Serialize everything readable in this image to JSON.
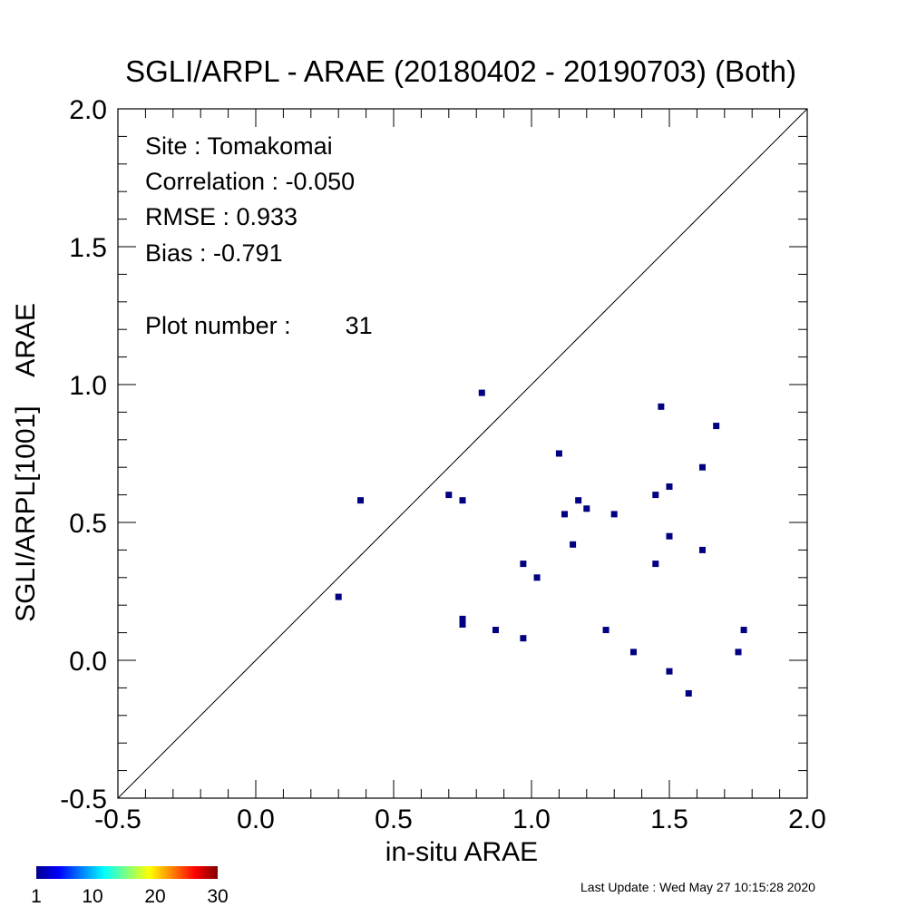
{
  "colors": {
    "point": "#000080",
    "axis": "#000000",
    "background": "#ffffff"
  },
  "chart_data": {
    "type": "scatter",
    "title": "SGLI/ARPL - ARAE (20180402 - 20190703) (Both)",
    "xlabel": "in-situ ARAE",
    "ylabel": "SGLI/ARPL[1001]    ARAE",
    "xlim": [
      -0.5,
      2.0
    ],
    "ylim": [
      -0.5,
      2.0
    ],
    "x_ticks": [
      -0.5,
      0.0,
      0.5,
      1.0,
      1.5,
      2.0
    ],
    "x_tick_labels": [
      "-0.5",
      "0.0",
      "0.5",
      "1.0",
      "1.5",
      "2.0"
    ],
    "y_ticks": [
      -0.5,
      0.0,
      0.5,
      1.0,
      1.5,
      2.0
    ],
    "y_tick_labels": [
      "-0.5",
      "0.0",
      "0.5",
      "1.0",
      "1.5",
      "2.0"
    ],
    "grid": false,
    "one_to_one_line": true,
    "stats": {
      "site": "Site : Tomakomai",
      "correlation": "Correlation :   -0.050",
      "rmse": "RMSE :    0.933",
      "bias": "Bias :   -0.791",
      "plot_number": "Plot number :        31"
    },
    "points": [
      {
        "x": 0.3,
        "y": 0.23
      },
      {
        "x": 0.38,
        "y": 0.58
      },
      {
        "x": 0.7,
        "y": 0.6
      },
      {
        "x": 0.75,
        "y": 0.58
      },
      {
        "x": 0.75,
        "y": 0.15
      },
      {
        "x": 0.75,
        "y": 0.13
      },
      {
        "x": 0.82,
        "y": 0.97
      },
      {
        "x": 0.87,
        "y": 0.11
      },
      {
        "x": 0.97,
        "y": 0.35
      },
      {
        "x": 0.97,
        "y": 0.08
      },
      {
        "x": 1.02,
        "y": 0.3
      },
      {
        "x": 1.1,
        "y": 0.75
      },
      {
        "x": 1.12,
        "y": 0.53
      },
      {
        "x": 1.15,
        "y": 0.42
      },
      {
        "x": 1.17,
        "y": 0.58
      },
      {
        "x": 1.2,
        "y": 0.55
      },
      {
        "x": 1.27,
        "y": 0.11
      },
      {
        "x": 1.3,
        "y": 0.53
      },
      {
        "x": 1.37,
        "y": 0.03
      },
      {
        "x": 1.45,
        "y": 0.6
      },
      {
        "x": 1.45,
        "y": 0.35
      },
      {
        "x": 1.47,
        "y": 0.92
      },
      {
        "x": 1.5,
        "y": 0.63
      },
      {
        "x": 1.5,
        "y": 0.45
      },
      {
        "x": 1.5,
        "y": -0.04
      },
      {
        "x": 1.57,
        "y": -0.12
      },
      {
        "x": 1.62,
        "y": 0.7
      },
      {
        "x": 1.62,
        "y": 0.4
      },
      {
        "x": 1.67,
        "y": 0.85
      },
      {
        "x": 1.75,
        "y": 0.03
      },
      {
        "x": 1.77,
        "y": 0.11
      }
    ],
    "colorbar": {
      "range": [
        1,
        30
      ],
      "tick_values": [
        1,
        10,
        20,
        30
      ],
      "tick_labels": [
        "1",
        "10",
        "20",
        "30"
      ],
      "colors": [
        "#00008f",
        "#0000ff",
        "#0080ff",
        "#00ffff",
        "#80ff80",
        "#ffff00",
        "#ff8000",
        "#ff0000",
        "#800000"
      ]
    }
  },
  "footer": {
    "last_update": "Last Update : Wed May 27 10:15:28 2020"
  }
}
